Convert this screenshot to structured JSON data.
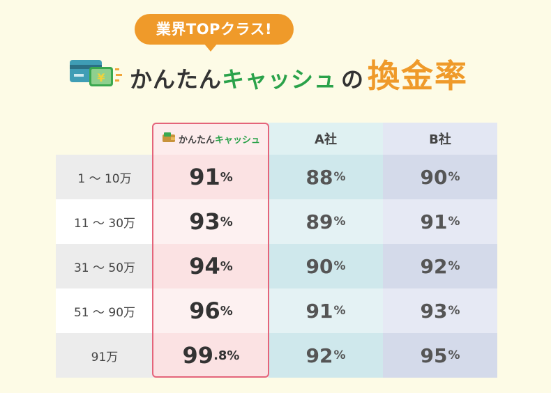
{
  "header": {
    "badge": "業界TOPクラス!",
    "title_brand_1": "かんたん",
    "title_brand_2": "キャッシュ",
    "title_no": "の",
    "title_accent": "換金率"
  },
  "table": {
    "columns": [
      {
        "brand_1": "かんたん",
        "brand_2": "キャッシュ"
      },
      {
        "label": "A社"
      },
      {
        "label": "B社"
      }
    ],
    "rows": [
      {
        "label": "1 ～ 10万",
        "kantan": "91",
        "kantan_unit": "%",
        "a": "88",
        "a_unit": "%",
        "b": "90",
        "b_unit": "%"
      },
      {
        "label": "11 ～ 30万",
        "kantan": "93",
        "kantan_unit": "%",
        "a": "89",
        "a_unit": "%",
        "b": "91",
        "b_unit": "%"
      },
      {
        "label": "31 ～ 50万",
        "kantan": "94",
        "kantan_unit": "%",
        "a": "90",
        "a_unit": "%",
        "b": "92",
        "b_unit": "%"
      },
      {
        "label": "51 ～ 90万",
        "kantan": "96",
        "kantan_unit": "%",
        "a": "91",
        "a_unit": "%",
        "b": "93",
        "b_unit": "%"
      },
      {
        "label": "91万",
        "kantan": "99",
        "kantan_unit": ".8%",
        "a": "92",
        "a_unit": "%",
        "b": "95",
        "b_unit": "%"
      }
    ]
  },
  "colors": {
    "background": "#fdfbe6",
    "accent_orange": "#ef9a2a",
    "brand_green": "#2aa24a",
    "highlight_border": "#e4647a"
  },
  "icons": [
    "card-yen-icon",
    "wallet-icon"
  ]
}
